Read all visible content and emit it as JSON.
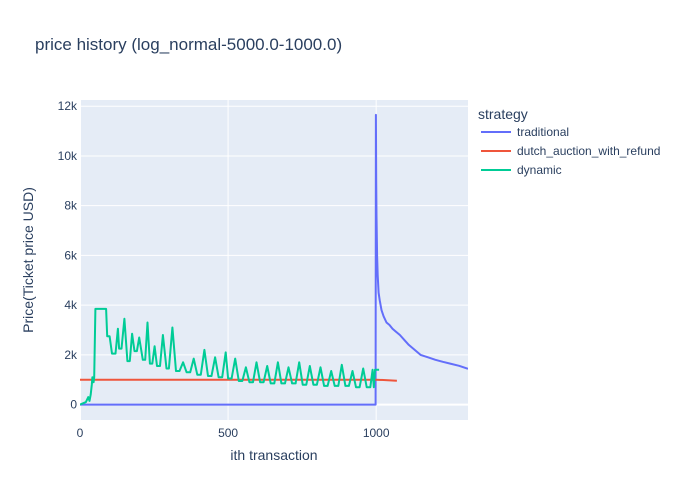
{
  "chart_data": {
    "type": "line",
    "title": "price history (log_normal-5000.0-1000.0)",
    "xlabel": "ith transaction",
    "ylabel": "Price(Ticket price USD)",
    "xlim": [
      0,
      1310
    ],
    "ylim": [
      -620,
      12250
    ],
    "x_ticks": [
      0,
      500,
      1000
    ],
    "x_tick_labels": [
      "0",
      "500",
      "1000"
    ],
    "y_ticks": [
      0,
      2000,
      4000,
      6000,
      8000,
      10000,
      12000
    ],
    "y_tick_labels": [
      "0",
      "2k",
      "4k",
      "6k",
      "8k",
      "10k",
      "12k"
    ],
    "grid": true,
    "legend": {
      "title": "strategy",
      "position": "right"
    },
    "series": [
      {
        "name": "traditional",
        "color": "#636efa",
        "x": [
          0,
          998,
          999,
          1000,
          1001,
          1003,
          1005,
          1008,
          1012,
          1018,
          1025,
          1035,
          1045,
          1055,
          1065,
          1080,
          1095,
          1110,
          1130,
          1150,
          1175,
          1200,
          1225,
          1250,
          1280,
          1310
        ],
        "y": [
          0,
          0,
          11650,
          9000,
          7600,
          6000,
          5200,
          4500,
          4200,
          3800,
          3550,
          3300,
          3200,
          3050,
          2950,
          2800,
          2600,
          2400,
          2200,
          2000,
          1900,
          1800,
          1720,
          1650,
          1560,
          1440
        ]
      },
      {
        "name": "dutch_auction_with_refund",
        "color": "#ef553b",
        "x": [
          0,
          200,
          400,
          600,
          800,
          1000,
          1070
        ],
        "y": [
          1000,
          1000,
          1000,
          1000,
          1000,
          1000,
          960
        ]
      },
      {
        "name": "dynamic",
        "color": "#00cc96",
        "x": [
          0,
          10,
          20,
          28,
          32,
          36,
          40,
          42,
          46,
          48,
          52,
          60,
          88,
          92,
          100,
          108,
          120,
          128,
          132,
          140,
          150,
          160,
          168,
          176,
          184,
          192,
          200,
          212,
          220,
          228,
          236,
          244,
          252,
          260,
          270,
          280,
          292,
          300,
          312,
          324,
          336,
          348,
          360,
          372,
          384,
          396,
          408,
          420,
          432,
          444,
          456,
          468,
          480,
          492,
          500,
          512,
          524,
          536,
          548,
          560,
          572,
          584,
          596,
          608,
          620,
          632,
          644,
          656,
          668,
          680,
          692,
          704,
          716,
          728,
          740,
          752,
          764,
          776,
          788,
          800,
          812,
          824,
          836,
          848,
          860,
          872,
          884,
          896,
          908,
          920,
          932,
          944,
          956,
          968,
          980,
          988,
          992,
          996,
          1002,
          1010
        ],
        "y": [
          0,
          50,
          100,
          300,
          150,
          400,
          800,
          1100,
          900,
          1100,
          3850,
          3850,
          3850,
          2750,
          2750,
          2050,
          2050,
          3050,
          2250,
          2250,
          3450,
          1750,
          1750,
          2850,
          2150,
          2150,
          2700,
          1800,
          1800,
          3300,
          1650,
          1650,
          2350,
          1550,
          1550,
          2800,
          1450,
          1450,
          3100,
          1350,
          1350,
          1700,
          1300,
          1300,
          1850,
          1200,
          1200,
          2200,
          1150,
          1150,
          1900,
          1100,
          1100,
          2100,
          1050,
          1050,
          1850,
          950,
          950,
          1500,
          900,
          900,
          1700,
          900,
          900,
          1550,
          850,
          850,
          1700,
          850,
          850,
          1500,
          850,
          850,
          1700,
          800,
          800,
          1550,
          800,
          800,
          1500,
          750,
          750,
          1350,
          750,
          750,
          1600,
          750,
          750,
          1350,
          700,
          700,
          1450,
          700,
          700,
          1400,
          700,
          1400,
          1400,
          1400
        ]
      }
    ]
  }
}
